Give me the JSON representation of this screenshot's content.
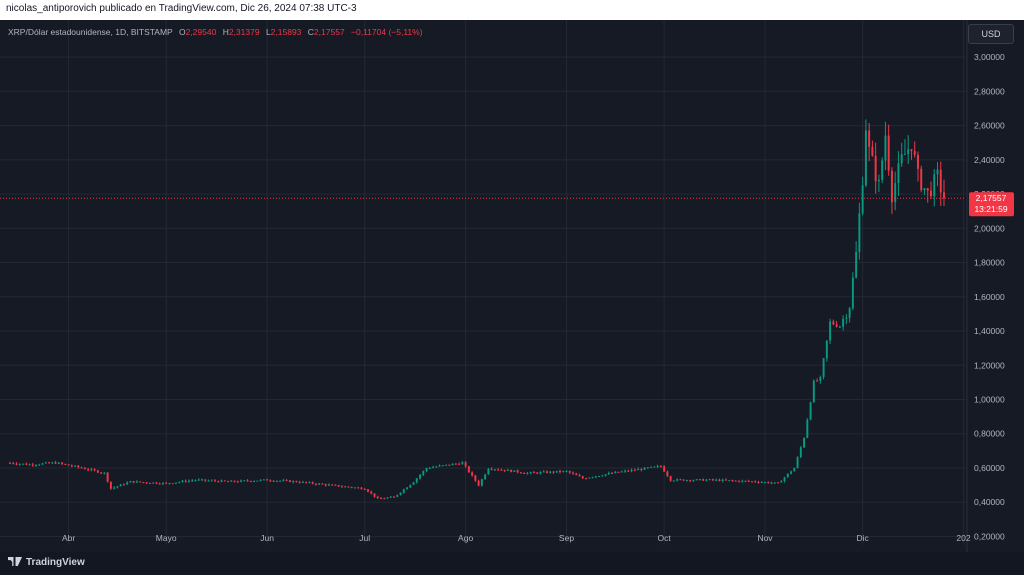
{
  "header": {
    "publisher_line": "nicolas_antiporovich publicado en TradingView.com, Dic 26, 2024 07:38 UTC-3"
  },
  "legend": {
    "symbol": "XRP/Dólar estadounidense, 1D, BITSTAMP",
    "o_label": "O",
    "o_value": "2,29540",
    "h_label": "H",
    "h_value": "2,31379",
    "l_label": "L",
    "l_value": "2,15893",
    "c_label": "C",
    "c_value": "2,17557",
    "change": "−0,11704 (−5,11%)"
  },
  "currency_button": "USD",
  "price_tag": {
    "value": "2,17557",
    "countdown": "13:21:59"
  },
  "branding": {
    "logo_text": "TradingView"
  },
  "colors": {
    "up": "#089981",
    "down": "#f23645",
    "background": "#161a25",
    "grid": "#242832"
  },
  "chart_data": {
    "type": "candlestick",
    "title": "",
    "xlabel": "",
    "ylabel": "",
    "ylim": [
      0.15,
      3.1
    ],
    "y_ticks": [
      "3,00000",
      "2,80000",
      "2,60000",
      "2,40000",
      "2,20000",
      "2,00000",
      "1,80000",
      "1,60000",
      "1,40000",
      "1,20000",
      "1,00000",
      "0,80000",
      "0,60000",
      "0,40000",
      "0,20000"
    ],
    "y_tick_values": [
      3.0,
      2.8,
      2.6,
      2.4,
      2.2,
      2.0,
      1.8,
      1.6,
      1.4,
      1.2,
      1.0,
      0.8,
      0.6,
      0.4,
      0.2
    ],
    "x_ticks": [
      "Abr",
      "Mayo",
      "Jun",
      "Jul",
      "Ago",
      "Sep",
      "Oct",
      "Nov",
      "Dic",
      "202"
    ],
    "x_tick_dates": [
      "2024-04-01",
      "2024-05-01",
      "2024-06-01",
      "2024-07-01",
      "2024-08-01",
      "2024-09-01",
      "2024-10-01",
      "2024-11-01",
      "2024-12-01",
      "2025-01-01"
    ],
    "range": [
      "2024-03-14",
      "2024-12-26"
    ],
    "last_price": 2.17557,
    "grid": true,
    "anchors": [
      [
        "2024-03-14",
        0.63
      ],
      [
        "2024-03-20",
        0.62
      ],
      [
        "2024-03-28",
        0.63
      ],
      [
        "2024-04-05",
        0.6
      ],
      [
        "2024-04-12",
        0.57
      ],
      [
        "2024-04-14",
        0.48
      ],
      [
        "2024-04-20",
        0.52
      ],
      [
        "2024-05-01",
        0.51
      ],
      [
        "2024-05-10",
        0.53
      ],
      [
        "2024-05-20",
        0.52
      ],
      [
        "2024-06-01",
        0.53
      ],
      [
        "2024-06-10",
        0.52
      ],
      [
        "2024-06-20",
        0.5
      ],
      [
        "2024-07-01",
        0.48
      ],
      [
        "2024-07-05",
        0.42
      ],
      [
        "2024-07-10",
        0.43
      ],
      [
        "2024-07-16",
        0.52
      ],
      [
        "2024-07-20",
        0.6
      ],
      [
        "2024-07-31",
        0.63
      ],
      [
        "2024-08-05",
        0.5
      ],
      [
        "2024-08-08",
        0.6
      ],
      [
        "2024-08-20",
        0.57
      ],
      [
        "2024-09-01",
        0.58
      ],
      [
        "2024-09-06",
        0.54
      ],
      [
        "2024-09-15",
        0.57
      ],
      [
        "2024-09-30",
        0.61
      ],
      [
        "2024-10-03",
        0.53
      ],
      [
        "2024-10-15",
        0.53
      ],
      [
        "2024-10-30",
        0.52
      ],
      [
        "2024-11-05",
        0.51
      ],
      [
        "2024-11-10",
        0.6
      ],
      [
        "2024-11-13",
        0.78
      ],
      [
        "2024-11-16",
        1.1
      ],
      [
        "2024-11-18",
        1.12
      ],
      [
        "2024-11-21",
        1.45
      ],
      [
        "2024-11-24",
        1.43
      ],
      [
        "2024-11-27",
        1.55
      ],
      [
        "2024-11-29",
        1.85
      ],
      [
        "2024-12-01",
        2.3
      ],
      [
        "2024-12-02",
        2.6
      ],
      [
        "2024-12-03",
        2.45
      ],
      [
        "2024-12-06",
        2.25
      ],
      [
        "2024-12-08",
        2.55
      ],
      [
        "2024-12-10",
        2.2
      ],
      [
        "2024-12-13",
        2.4
      ],
      [
        "2024-12-16",
        2.5
      ],
      [
        "2024-12-18",
        2.3
      ],
      [
        "2024-12-21",
        2.2
      ],
      [
        "2024-12-24",
        2.3
      ],
      [
        "2024-12-26",
        2.17
      ]
    ]
  }
}
